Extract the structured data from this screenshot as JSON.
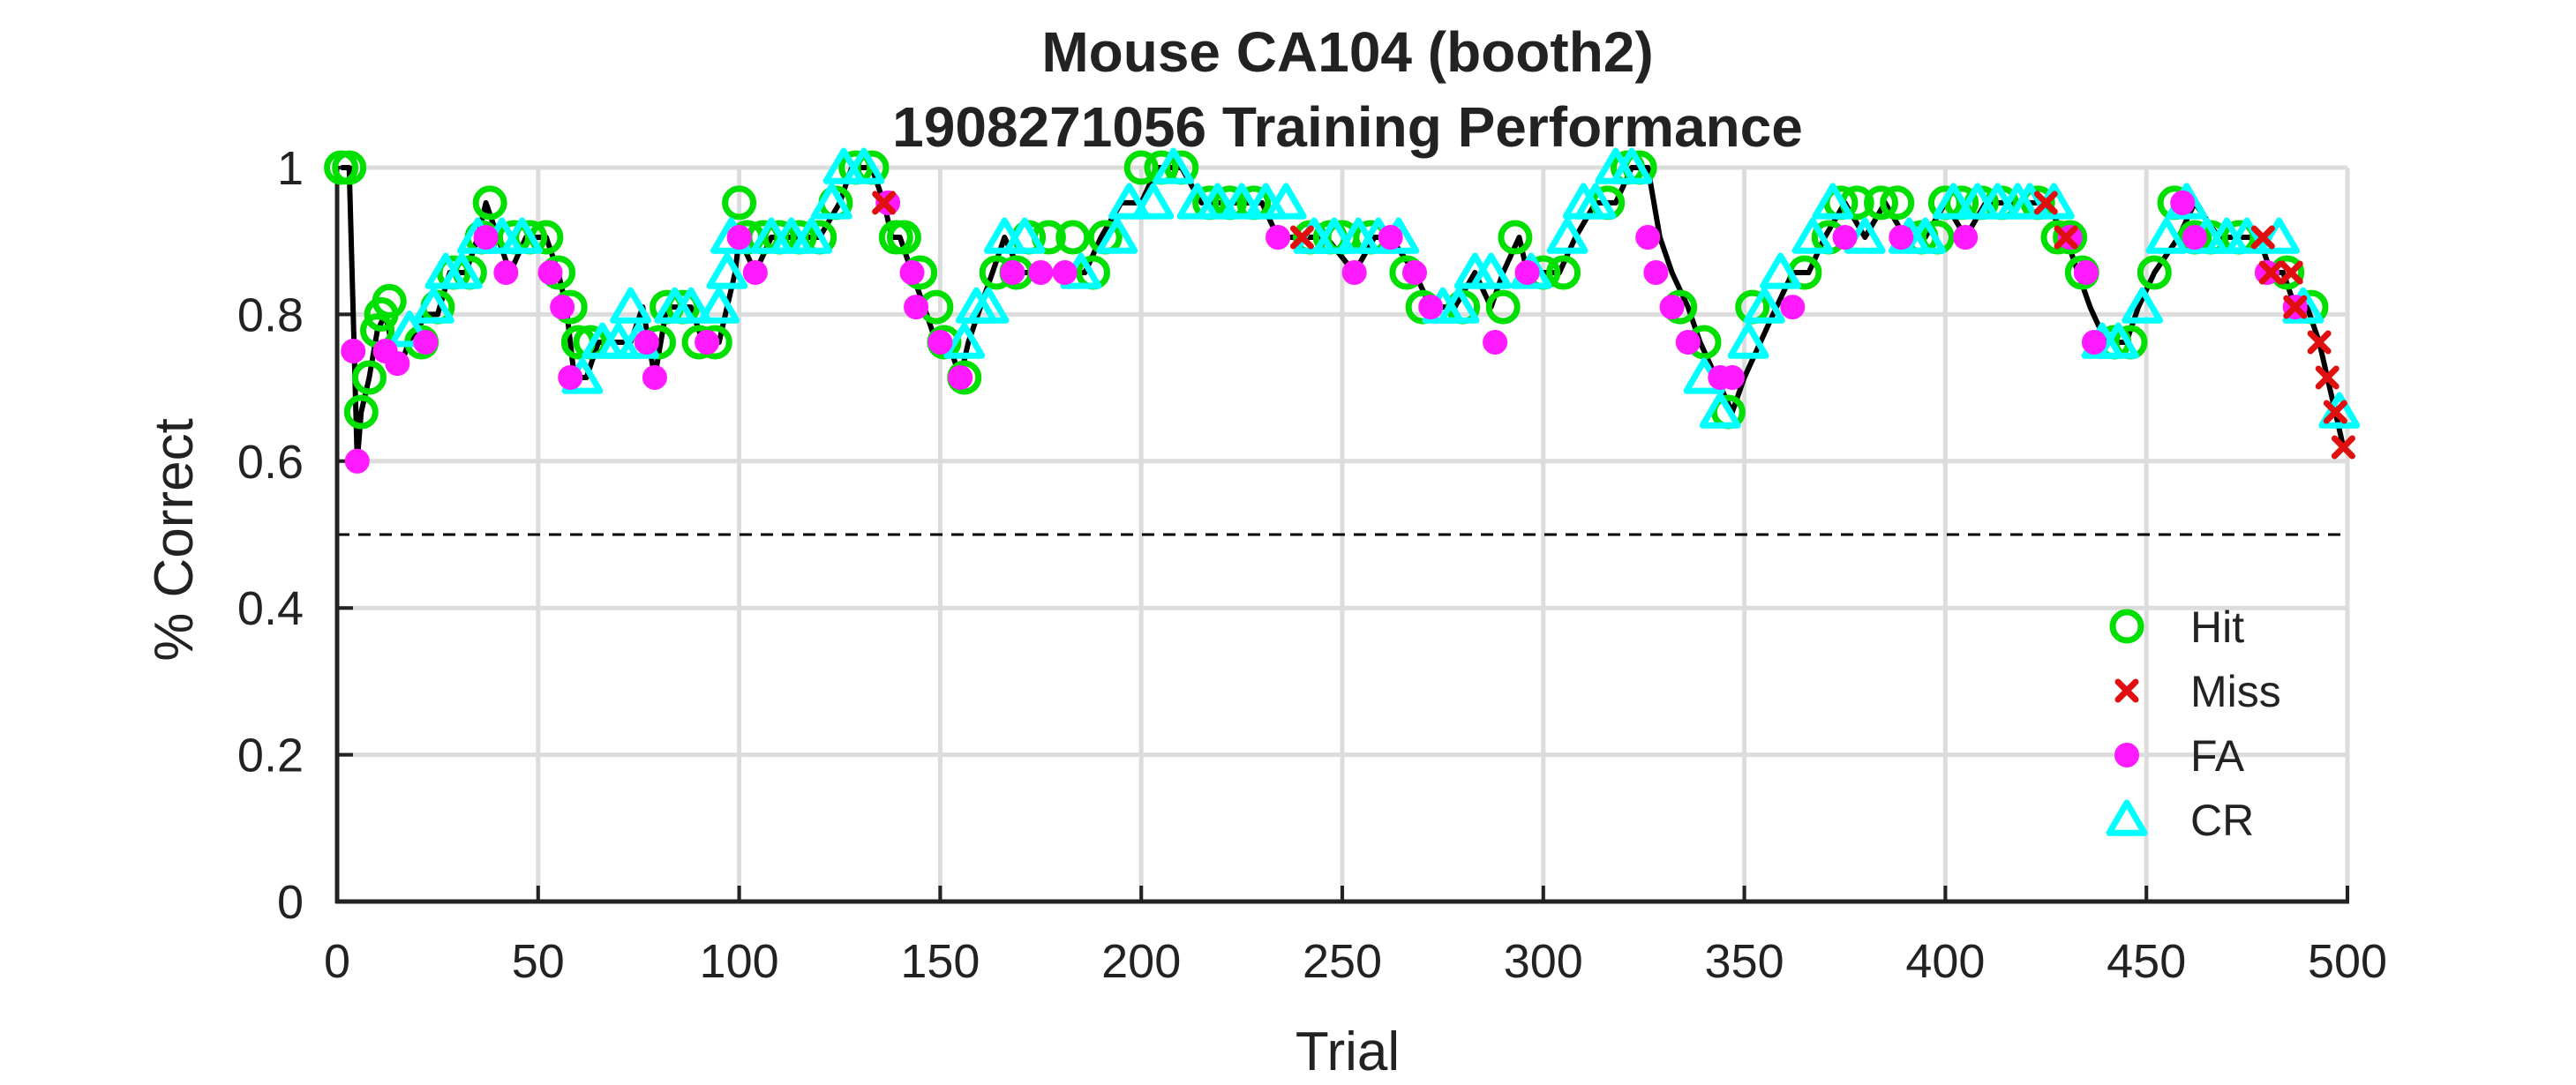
{
  "chart_data": {
    "type": "scatter",
    "title": "Mouse CA104 (booth2)",
    "subtitle": "1908271056 Training Performance",
    "xlabel": "Trial",
    "ylabel": "% Correct",
    "xlim": [
      0,
      500
    ],
    "ylim": [
      0,
      1
    ],
    "xticks": [
      0,
      50,
      100,
      150,
      200,
      250,
      300,
      350,
      400,
      450,
      500
    ],
    "yticks": [
      0,
      0.2,
      0.4,
      0.6,
      0.8,
      1
    ],
    "ytick_labels": [
      "0",
      "0.2",
      "0.4",
      "0.6",
      "0.8",
      "1"
    ],
    "grid": true,
    "reference_line": {
      "y": 0.5,
      "style": "dashed"
    },
    "legend_position": "bottom-right",
    "line_color": "#000000",
    "performance_curve": {
      "x": [
        1,
        3,
        5,
        6,
        8,
        10,
        12,
        14,
        16,
        18,
        20,
        22,
        25,
        28,
        32,
        35,
        37,
        40,
        43,
        47,
        52,
        55,
        57,
        59,
        62,
        65,
        70,
        73,
        76,
        79,
        82,
        85,
        88,
        91,
        95,
        97,
        99,
        100,
        104,
        108,
        112,
        120,
        125,
        128,
        133,
        136,
        138,
        140,
        143,
        146,
        149,
        152,
        155,
        157,
        160,
        163,
        166,
        170,
        175,
        180,
        186,
        190,
        195,
        200,
        204,
        210,
        215,
        222,
        230,
        234,
        238,
        240,
        246,
        253,
        258,
        262,
        268,
        272,
        278,
        283,
        287,
        290,
        294,
        296,
        300,
        304,
        308,
        313,
        318,
        322,
        326,
        329,
        332,
        336,
        339,
        343,
        347,
        350,
        354,
        358,
        362,
        366,
        370,
        375,
        380,
        385,
        390,
        395,
        400,
        405,
        410,
        415,
        420,
        425,
        430,
        433,
        436,
        440,
        445,
        448,
        452,
        458,
        462,
        468,
        474,
        478,
        481,
        484,
        487,
        490,
        493,
        495,
        497,
        499
      ],
      "y": [
        1,
        1,
        0.6,
        0.667,
        0.714,
        0.778,
        0.8,
        0.75,
        0.733,
        0.765,
        0.778,
        0.8,
        0.8,
        0.857,
        0.857,
        0.905,
        0.952,
        0.905,
        0.857,
        0.905,
        0.905,
        0.857,
        0.81,
        0.714,
        0.714,
        0.762,
        0.762,
        0.762,
        0.81,
        0.714,
        0.81,
        0.81,
        0.81,
        0.762,
        0.762,
        0.81,
        0.857,
        0.905,
        0.857,
        0.905,
        0.905,
        0.905,
        0.952,
        1,
        1,
        0.952,
        0.905,
        0.905,
        0.857,
        0.81,
        0.762,
        0.762,
        0.714,
        0.762,
        0.81,
        0.857,
        0.905,
        0.857,
        0.857,
        0.857,
        0.857,
        0.905,
        0.952,
        0.952,
        1,
        1,
        0.952,
        0.952,
        0.952,
        0.905,
        0.905,
        0.905,
        0.905,
        0.857,
        0.905,
        0.905,
        0.857,
        0.81,
        0.81,
        0.857,
        0.81,
        0.857,
        0.905,
        0.857,
        0.857,
        0.857,
        0.905,
        0.952,
        0.952,
        1,
        1,
        0.905,
        0.857,
        0.81,
        0.762,
        0.714,
        0.667,
        0.714,
        0.762,
        0.81,
        0.857,
        0.857,
        0.905,
        0.952,
        0.905,
        0.952,
        0.905,
        0.905,
        0.952,
        0.905,
        0.952,
        0.952,
        0.952,
        0.952,
        0.905,
        0.857,
        0.81,
        0.762,
        0.762,
        0.81,
        0.857,
        0.905,
        0.952,
        0.905,
        0.905,
        0.905,
        0.857,
        0.857,
        0.81,
        0.81,
        0.762,
        0.714,
        0.667,
        0.619
      ]
    },
    "series": [
      {
        "name": "Hit",
        "marker": "circle-open",
        "color": "#00e000",
        "x": [
          1,
          3,
          6,
          8,
          10,
          11,
          13,
          21,
          25,
          29,
          33,
          36,
          38,
          44,
          48,
          52,
          55,
          58,
          60,
          63,
          80,
          82,
          86,
          90,
          94,
          100,
          102,
          106,
          110,
          115,
          120,
          124,
          129,
          133,
          139,
          141,
          145,
          149,
          151,
          156,
          164,
          169,
          172,
          177,
          183,
          188,
          191,
          200,
          205,
          210,
          217,
          222,
          228,
          242,
          247,
          250,
          257,
          266,
          270,
          280,
          290,
          293,
          300,
          305,
          316,
          321,
          324,
          334,
          340,
          346,
          352,
          365,
          371,
          374,
          378,
          384,
          388,
          394,
          398,
          400,
          404,
          409,
          414,
          423,
          428,
          431,
          434,
          442,
          446,
          452,
          457,
          462,
          466,
          473,
          485,
          491
        ],
        "y": [
          1,
          1,
          0.667,
          0.714,
          0.778,
          0.8,
          0.818,
          0.762,
          0.81,
          0.857,
          0.857,
          0.905,
          0.952,
          0.905,
          0.905,
          0.905,
          0.857,
          0.81,
          0.762,
          0.762,
          0.762,
          0.81,
          0.81,
          0.762,
          0.762,
          0.952,
          0.905,
          0.905,
          0.905,
          0.905,
          0.905,
          0.952,
          1,
          1,
          0.905,
          0.905,
          0.857,
          0.81,
          0.762,
          0.714,
          0.857,
          0.857,
          0.905,
          0.905,
          0.905,
          0.857,
          0.905,
          1,
          1,
          1,
          0.952,
          0.952,
          0.952,
          0.905,
          0.905,
          0.905,
          0.905,
          0.857,
          0.81,
          0.81,
          0.81,
          0.905,
          0.857,
          0.857,
          0.952,
          1,
          1,
          0.81,
          0.762,
          0.667,
          0.81,
          0.857,
          0.905,
          0.952,
          0.952,
          0.952,
          0.952,
          0.905,
          0.905,
          0.952,
          0.952,
          0.952,
          0.952,
          0.952,
          0.905,
          0.905,
          0.857,
          0.762,
          0.762,
          0.857,
          0.952,
          0.905,
          0.905,
          0.905,
          0.857,
          0.81
        ]
      },
      {
        "name": "Miss",
        "marker": "x",
        "color": "#e01010",
        "x": [
          136,
          240,
          425,
          430,
          479,
          481,
          486,
          487,
          493,
          495,
          497,
          499
        ],
        "y": [
          0.952,
          0.905,
          0.952,
          0.905,
          0.905,
          0.857,
          0.857,
          0.81,
          0.762,
          0.714,
          0.667,
          0.619
        ]
      },
      {
        "name": "FA",
        "marker": "circle-filled",
        "color": "#ff1aff",
        "x": [
          4,
          5,
          12,
          15,
          22,
          37,
          42,
          53,
          56,
          58,
          77,
          79,
          92,
          100,
          104,
          137,
          143,
          144,
          150,
          155,
          168,
          175,
          181,
          234,
          253,
          262,
          268,
          272,
          288,
          296,
          326,
          328,
          332,
          336,
          344,
          347,
          362,
          375,
          389,
          405,
          431,
          435,
          437,
          459,
          462,
          480,
          487
        ],
        "y": [
          0.75,
          0.6,
          0.75,
          0.733,
          0.762,
          0.905,
          0.857,
          0.857,
          0.81,
          0.714,
          0.762,
          0.714,
          0.762,
          0.905,
          0.857,
          0.952,
          0.857,
          0.81,
          0.762,
          0.714,
          0.857,
          0.857,
          0.857,
          0.905,
          0.857,
          0.905,
          0.857,
          0.81,
          0.762,
          0.857,
          0.905,
          0.857,
          0.81,
          0.762,
          0.714,
          0.714,
          0.81,
          0.905,
          0.905,
          0.905,
          0.905,
          0.857,
          0.762,
          0.952,
          0.905,
          0.857,
          0.81
        ]
      },
      {
        "name": "CR",
        "marker": "triangle-open",
        "color": "#00ffff",
        "x": [
          18,
          24,
          27,
          31,
          35,
          41,
          46,
          61,
          66,
          70,
          73,
          75,
          84,
          88,
          95,
          97,
          98,
          108,
          113,
          118,
          123,
          126,
          131,
          156,
          159,
          162,
          166,
          171,
          185,
          194,
          197,
          203,
          208,
          214,
          219,
          225,
          231,
          236,
          243,
          248,
          254,
          259,
          264,
          275,
          279,
          283,
          287,
          297,
          306,
          310,
          313,
          318,
          322,
          340,
          344,
          351,
          355,
          359,
          367,
          372,
          380,
          391,
          395,
          402,
          408,
          413,
          418,
          421,
          427,
          439,
          443,
          449,
          455,
          460,
          465,
          470,
          475,
          483,
          489,
          498
        ],
        "y": [
          0.778,
          0.81,
          0.857,
          0.857,
          0.905,
          0.905,
          0.905,
          0.714,
          0.762,
          0.762,
          0.81,
          0.762,
          0.81,
          0.81,
          0.81,
          0.857,
          0.905,
          0.905,
          0.905,
          0.905,
          0.952,
          1,
          1,
          0.762,
          0.81,
          0.81,
          0.905,
          0.905,
          0.857,
          0.905,
          0.952,
          0.952,
          1,
          0.952,
          0.952,
          0.952,
          0.952,
          0.952,
          0.905,
          0.905,
          0.905,
          0.905,
          0.905,
          0.81,
          0.81,
          0.857,
          0.857,
          0.857,
          0.905,
          0.952,
          0.952,
          1,
          1,
          0.714,
          0.667,
          0.762,
          0.81,
          0.857,
          0.905,
          0.952,
          0.905,
          0.905,
          0.905,
          0.952,
          0.952,
          0.952,
          0.952,
          0.952,
          0.952,
          0.762,
          0.762,
          0.81,
          0.905,
          0.952,
          0.905,
          0.905,
          0.905,
          0.905,
          0.81,
          0.667
        ]
      }
    ]
  }
}
